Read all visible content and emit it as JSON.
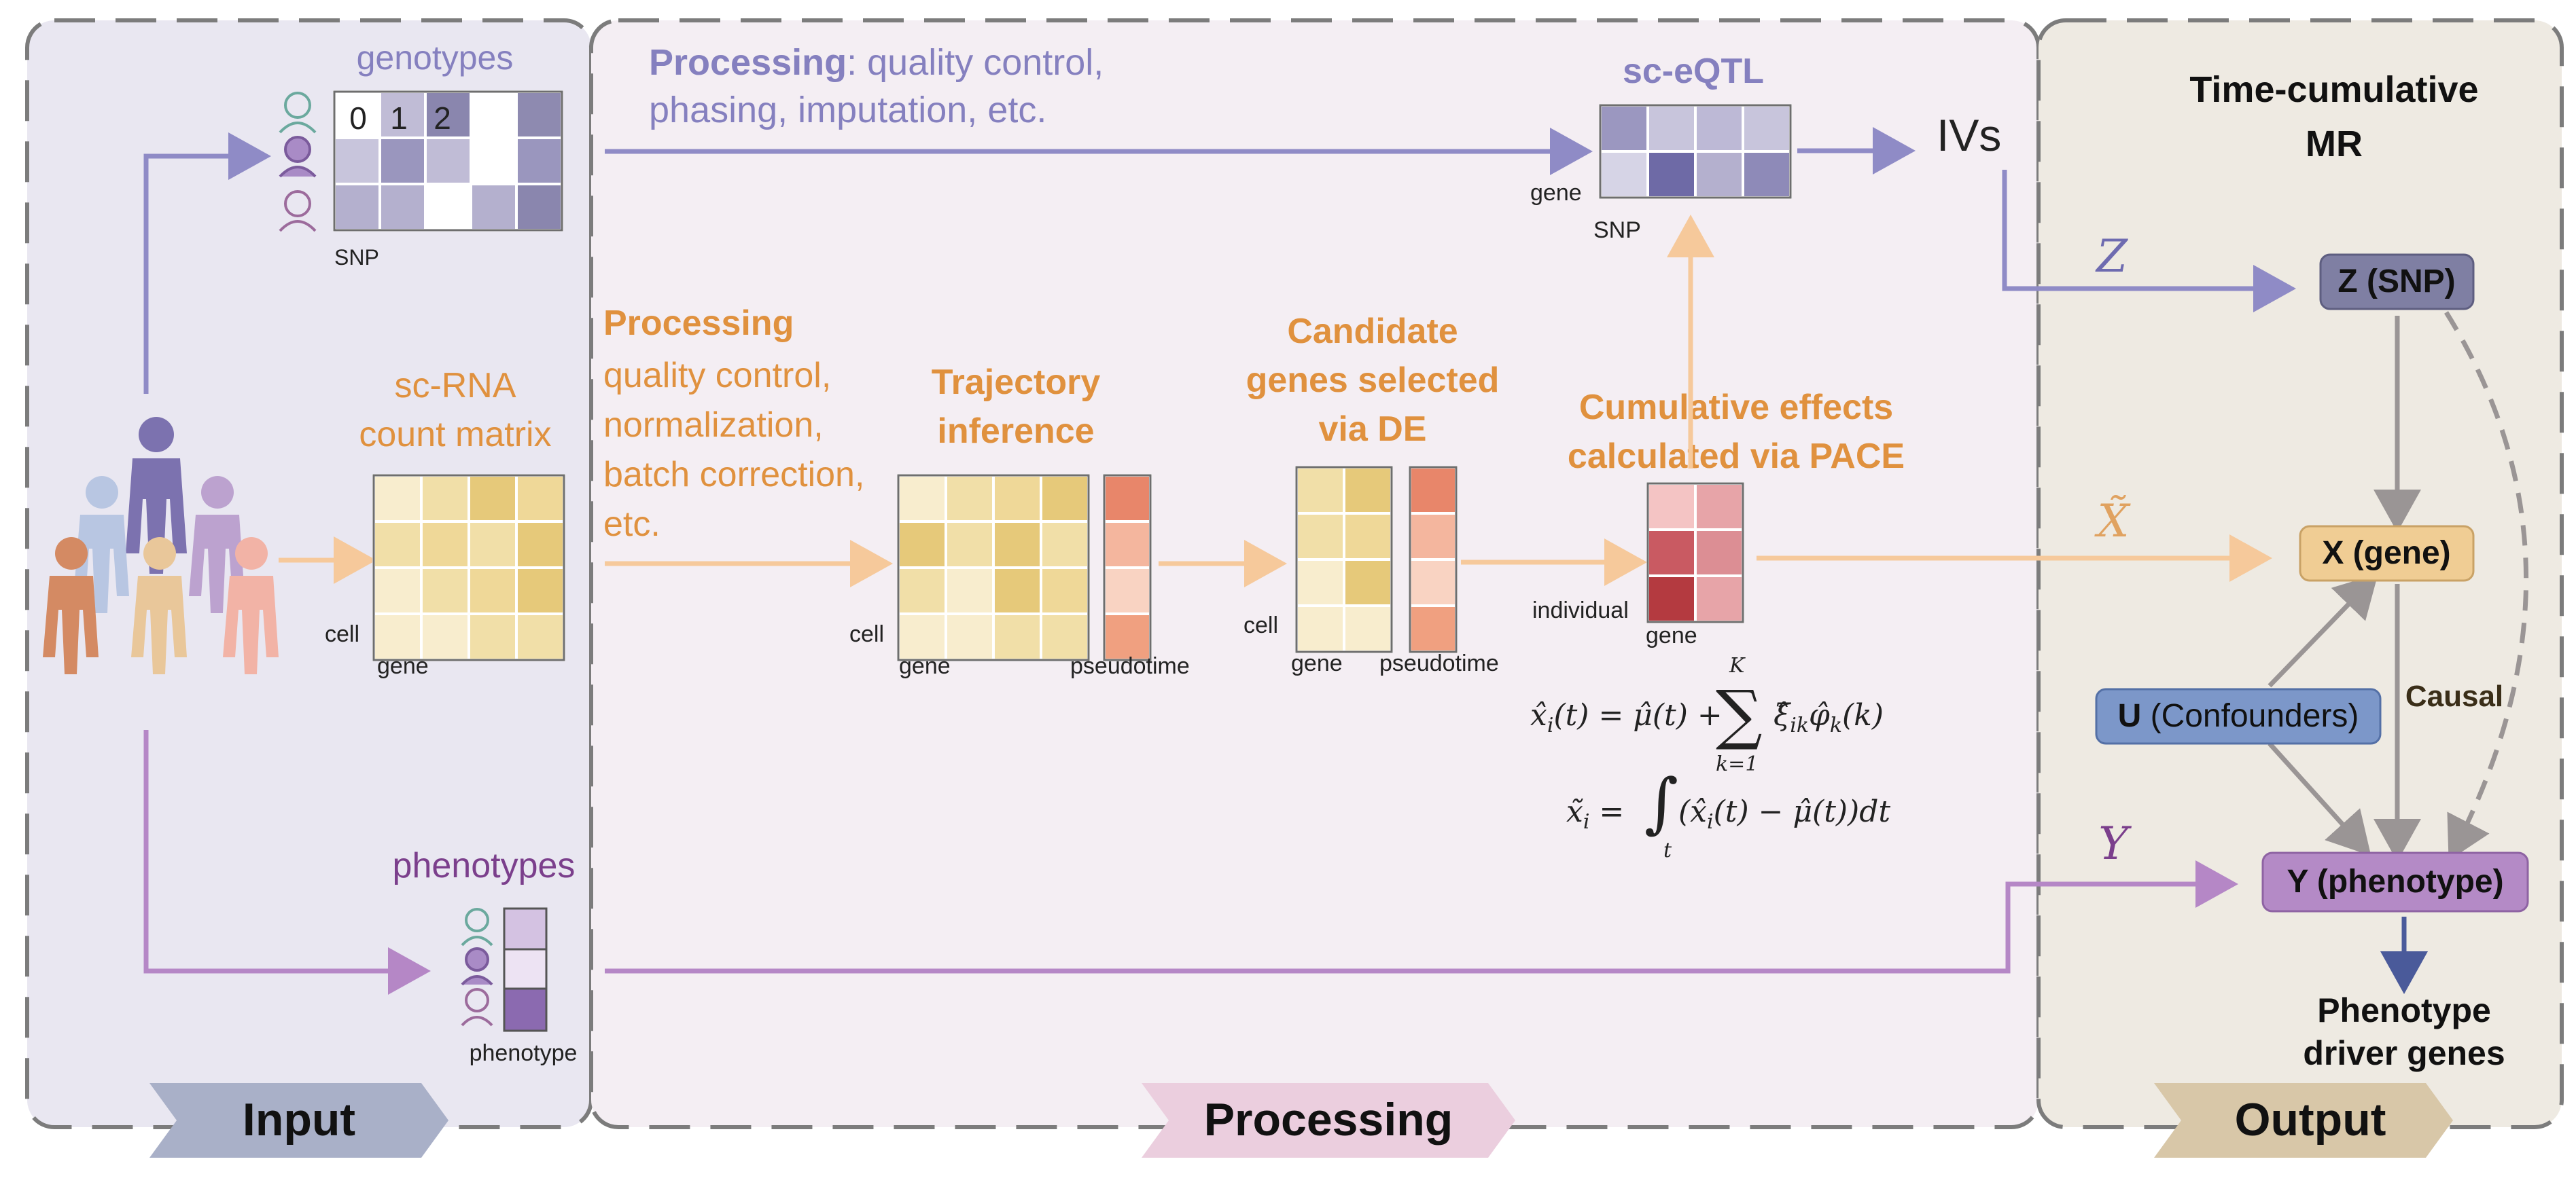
{
  "panels": {
    "input_label": "Input",
    "processing_label": "Processing",
    "output_label": "Output"
  },
  "input": {
    "genotypes_title": "genotypes",
    "genotype_header": [
      "0",
      "1",
      "2"
    ],
    "snp_label": "SNP",
    "scrna_title_1": "sc-RNA",
    "scrna_title_2": "count matrix",
    "cell_label": "cell",
    "gene_label": "gene",
    "phenotypes_title": "phenotypes",
    "phenotype_label": "phenotype"
  },
  "processing": {
    "geno_processing_bold": "Processing",
    "geno_processing_rest": ": quality control,",
    "geno_processing_line2": "phasing, imputation, etc.",
    "scrna_processing_title": "Processing",
    "scrna_processing_lines": [
      "quality control,",
      "normalization,",
      "batch correction,",
      "etc."
    ],
    "trajectory_title_1": "Trajectory",
    "trajectory_title_2": "inference",
    "candidate_title_1": "Candidate",
    "candidate_title_2": "genes selected",
    "candidate_title_3": "via DE",
    "cumulative_title_1": "Cumulative effects",
    "cumulative_title_2": "calculated via PACE",
    "pseudotime_label": "pseudotime",
    "individual_label": "individual",
    "sceqtl_title": "sc-eQTL",
    "ivs_label": "IVs"
  },
  "output": {
    "title_1": "Time-cumulative",
    "title_2": "MR",
    "z_label": "Z",
    "x_label": "X̃",
    "y_label": "Y",
    "z_node": "Z (SNP)",
    "x_node": "X (gene)",
    "u_node_bold": "U",
    "u_node_rest": " (Confounders)",
    "y_node": "Y (phenotype)",
    "causal_label": "Causal",
    "driver_1": "Phenotype",
    "driver_2": "driver genes"
  },
  "colors": {
    "blue": "#8580BF",
    "orange": "#E0913E",
    "purple": "#7B3F8C",
    "z_node": "#7F7FA3",
    "x_node": "#F0CD94",
    "u_node": "#7C97C9",
    "y_node": "#B48AC6"
  }
}
